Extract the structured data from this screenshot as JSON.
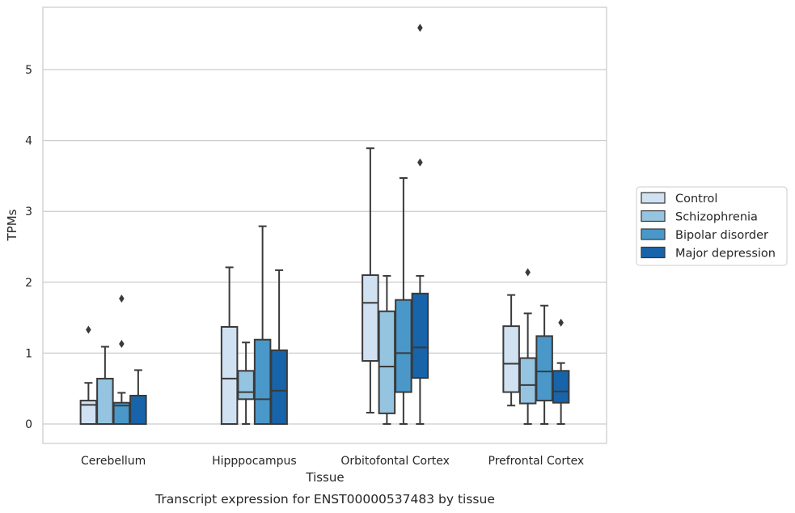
{
  "chart_data": {
    "type": "box",
    "xlabel": "Tissue",
    "ylabel": "TPMs",
    "caption": "Transcript expression for ENST00000537483 by tissue",
    "ylim": [
      -0.27,
      5.85
    ],
    "yticks": [
      0,
      1,
      2,
      3,
      4,
      5
    ],
    "grid": "horizontal",
    "legend_position": "right",
    "categories": [
      "Cerebellum",
      "Hipppocampus",
      "Orbitofontal Cortex",
      "Prefrontal Cortex"
    ],
    "series": [
      {
        "name": "Control",
        "color": "#d0e1f2",
        "boxes": [
          {
            "whislo": 0,
            "q1": 0,
            "med": 0.27,
            "q3": 0.33,
            "whishi": 0.58,
            "fliers": [
              1.33
            ]
          },
          {
            "whislo": 0,
            "q1": 0,
            "med": 0.64,
            "q3": 1.37,
            "whishi": 2.21,
            "fliers": []
          },
          {
            "whislo": 0.16,
            "q1": 0.89,
            "med": 1.71,
            "q3": 2.1,
            "whishi": 3.89,
            "fliers": []
          },
          {
            "whislo": 0.26,
            "q1": 0.45,
            "med": 0.85,
            "q3": 1.38,
            "whishi": 1.82,
            "fliers": []
          }
        ]
      },
      {
        "name": "Schizophrenia",
        "color": "#94c4df",
        "boxes": [
          {
            "whislo": 0,
            "q1": 0,
            "med": 0,
            "q3": 0.64,
            "whishi": 1.09,
            "fliers": []
          },
          {
            "whislo": 0,
            "q1": 0.35,
            "med": 0.45,
            "q3": 0.75,
            "whishi": 1.15,
            "fliers": []
          },
          {
            "whislo": 0,
            "q1": 0.15,
            "med": 0.81,
            "q3": 1.59,
            "whishi": 2.09,
            "fliers": []
          },
          {
            "whislo": 0,
            "q1": 0.29,
            "med": 0.55,
            "q3": 0.93,
            "whishi": 1.56,
            "fliers": [
              2.14
            ]
          }
        ]
      },
      {
        "name": "Bipolar disorder",
        "color": "#4a98c9",
        "boxes": [
          {
            "whislo": 0,
            "q1": 0,
            "med": 0.26,
            "q3": 0.3,
            "whishi": 0.44,
            "fliers": [
              1.13,
              1.77
            ]
          },
          {
            "whislo": 0,
            "q1": 0,
            "med": 0.35,
            "q3": 1.19,
            "whishi": 2.79,
            "fliers": []
          },
          {
            "whislo": 0,
            "q1": 0.45,
            "med": 1.0,
            "q3": 1.75,
            "whishi": 3.47,
            "fliers": []
          },
          {
            "whislo": 0,
            "q1": 0.33,
            "med": 0.74,
            "q3": 1.24,
            "whishi": 1.67,
            "fliers": []
          }
        ]
      },
      {
        "name": "Major depression",
        "color": "#1764ab",
        "boxes": [
          {
            "whislo": 0,
            "q1": 0,
            "med": 0,
            "q3": 0.4,
            "whishi": 0.76,
            "fliers": []
          },
          {
            "whislo": 0,
            "q1": 0,
            "med": 0.47,
            "q3": 1.04,
            "whishi": 2.17,
            "fliers": []
          },
          {
            "whislo": 0,
            "q1": 0.65,
            "med": 1.08,
            "q3": 1.84,
            "whishi": 2.09,
            "fliers": [
              3.69,
              5.59
            ]
          },
          {
            "whislo": 0,
            "q1": 0.3,
            "med": 0.46,
            "q3": 0.75,
            "whishi": 0.86,
            "fliers": [
              1.43
            ]
          }
        ]
      }
    ]
  }
}
